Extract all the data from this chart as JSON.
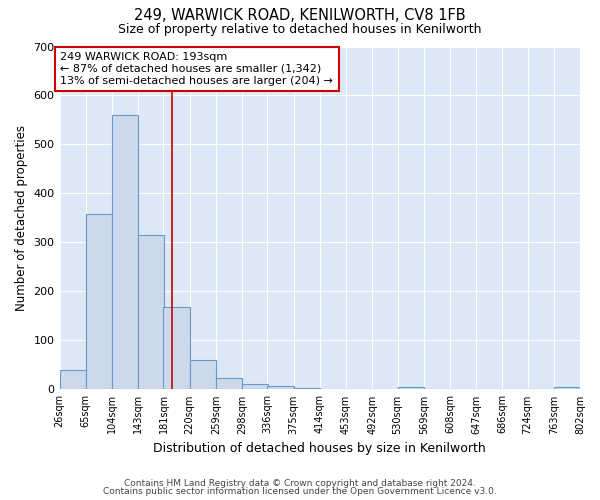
{
  "title1": "249, WARWICK ROAD, KENILWORTH, CV8 1FB",
  "title2": "Size of property relative to detached houses in Kenilworth",
  "xlabel": "Distribution of detached houses by size in Kenilworth",
  "ylabel": "Number of detached properties",
  "bar_left_edges": [
    26,
    65,
    104,
    143,
    181,
    220,
    259,
    298,
    336,
    375,
    414,
    453,
    492,
    530,
    569,
    608,
    647,
    686,
    724,
    763
  ],
  "bar_heights": [
    40,
    358,
    560,
    315,
    168,
    60,
    23,
    11,
    7,
    3,
    0,
    0,
    0,
    5,
    0,
    0,
    0,
    0,
    0,
    5
  ],
  "bin_width": 39,
  "bar_facecolor": "#ccd9ea",
  "bar_edgecolor": "#6699cc",
  "background_color": "#dce8f5",
  "grid_color": "#ffffff",
  "property_line_x": 193,
  "ylim": [
    0,
    700
  ],
  "yticks": [
    0,
    100,
    200,
    300,
    400,
    500,
    600,
    700
  ],
  "annotation_box_text": "249 WARWICK ROAD: 193sqm\n← 87% of detached houses are smaller (1,342)\n13% of semi-detached houses are larger (204) →",
  "footnote1": "Contains HM Land Registry data © Crown copyright and database right 2024.",
  "footnote2": "Contains public sector information licensed under the Open Government Licence v3.0.",
  "tick_labels": [
    "26sqm",
    "65sqm",
    "104sqm",
    "143sqm",
    "181sqm",
    "220sqm",
    "259sqm",
    "298sqm",
    "336sqm",
    "375sqm",
    "414sqm",
    "453sqm",
    "492sqm",
    "530sqm",
    "569sqm",
    "608sqm",
    "647sqm",
    "686sqm",
    "724sqm",
    "763sqm",
    "802sqm"
  ]
}
